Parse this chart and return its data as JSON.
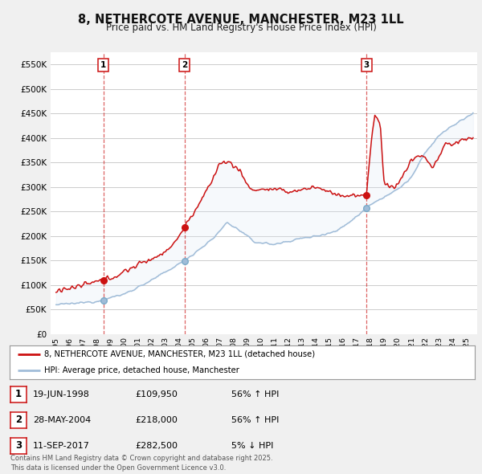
{
  "title": "8, NETHERCOTE AVENUE, MANCHESTER, M23 1LL",
  "subtitle": "Price paid vs. HM Land Registry's House Price Index (HPI)",
  "legend_line1": "8, NETHERCOTE AVENUE, MANCHESTER, M23 1LL (detached house)",
  "legend_line2": "HPI: Average price, detached house, Manchester",
  "transactions": [
    {
      "num": 1,
      "date": "19-JUN-1998",
      "price": 109950,
      "pct": "56%",
      "dir": "↑",
      "x_year": 1998.47
    },
    {
      "num": 2,
      "date": "28-MAY-2004",
      "price": 218000,
      "pct": "56%",
      "dir": "↑",
      "x_year": 2004.4
    },
    {
      "num": 3,
      "date": "11-SEP-2017",
      "price": 282500,
      "pct": "5%",
      "dir": "↓",
      "x_year": 2017.7
    }
  ],
  "footer": "Contains HM Land Registry data © Crown copyright and database right 2025.\nThis data is licensed under the Open Government Licence v3.0.",
  "bg_color": "#f0f0f0",
  "plot_bg_color": "#ffffff",
  "red_color": "#cc1111",
  "blue_color": "#a0bcd8",
  "fill_color": "#dce8f5",
  "grid_color": "#cccccc",
  "ylim": [
    0,
    575000
  ],
  "yticks": [
    0,
    50000,
    100000,
    150000,
    200000,
    250000,
    300000,
    350000,
    400000,
    450000,
    500000,
    550000
  ],
  "xlim_start": 1994.6,
  "xlim_end": 2025.8
}
